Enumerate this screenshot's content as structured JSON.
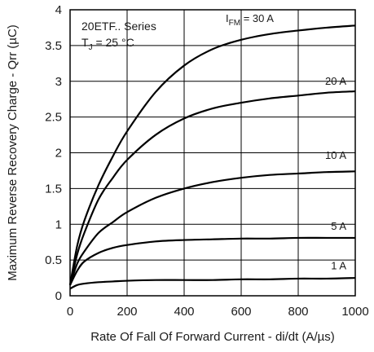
{
  "chart_data": {
    "type": "line",
    "xlabel": "Rate Of Fall Of Forward Current - di/dt (A/µs)",
    "ylabel": "Maximum Reverse Recovery Charge - Qrr (µC)",
    "xlim": [
      0,
      1000
    ],
    "ylim": [
      0,
      4
    ],
    "x_ticks": [
      "0",
      "200",
      "400",
      "600",
      "800",
      "1000"
    ],
    "y_ticks": [
      "0",
      "0.5",
      "1",
      "1.5",
      "2",
      "2.5",
      "3",
      "3.5",
      "4"
    ],
    "grid": true,
    "x": [
      0,
      25,
      50,
      100,
      150,
      200,
      300,
      400,
      500,
      600,
      700,
      800,
      900,
      1000
    ],
    "series": [
      {
        "name": "I_FM = 30 A",
        "values": [
          0.15,
          0.7,
          1.05,
          1.55,
          1.95,
          2.3,
          2.85,
          3.22,
          3.45,
          3.58,
          3.66,
          3.71,
          3.75,
          3.78
        ]
      },
      {
        "name": "20 A",
        "values": [
          0.15,
          0.58,
          0.88,
          1.35,
          1.65,
          1.9,
          2.25,
          2.48,
          2.62,
          2.7,
          2.76,
          2.8,
          2.84,
          2.86
        ]
      },
      {
        "name": "10 A",
        "values": [
          0.15,
          0.45,
          0.62,
          0.88,
          1.03,
          1.17,
          1.37,
          1.5,
          1.59,
          1.65,
          1.69,
          1.71,
          1.73,
          1.74
        ]
      },
      {
        "name": "5 A",
        "values": [
          0.15,
          0.35,
          0.48,
          0.6,
          0.67,
          0.71,
          0.76,
          0.78,
          0.79,
          0.8,
          0.8,
          0.81,
          0.81,
          0.81
        ]
      },
      {
        "name": "1 A",
        "values": [
          0.1,
          0.15,
          0.17,
          0.19,
          0.2,
          0.21,
          0.22,
          0.22,
          0.22,
          0.23,
          0.23,
          0.24,
          0.24,
          0.25
        ]
      }
    ],
    "annotations": {
      "series_title": "20ETF.. Series",
      "condition_prefix": "T",
      "condition_sub": "J",
      "condition_value": " = 25 °C"
    },
    "curve_label_parts": {
      "i_main": "I",
      "i_sub": "FM",
      "i_value": " = 30 A"
    }
  }
}
